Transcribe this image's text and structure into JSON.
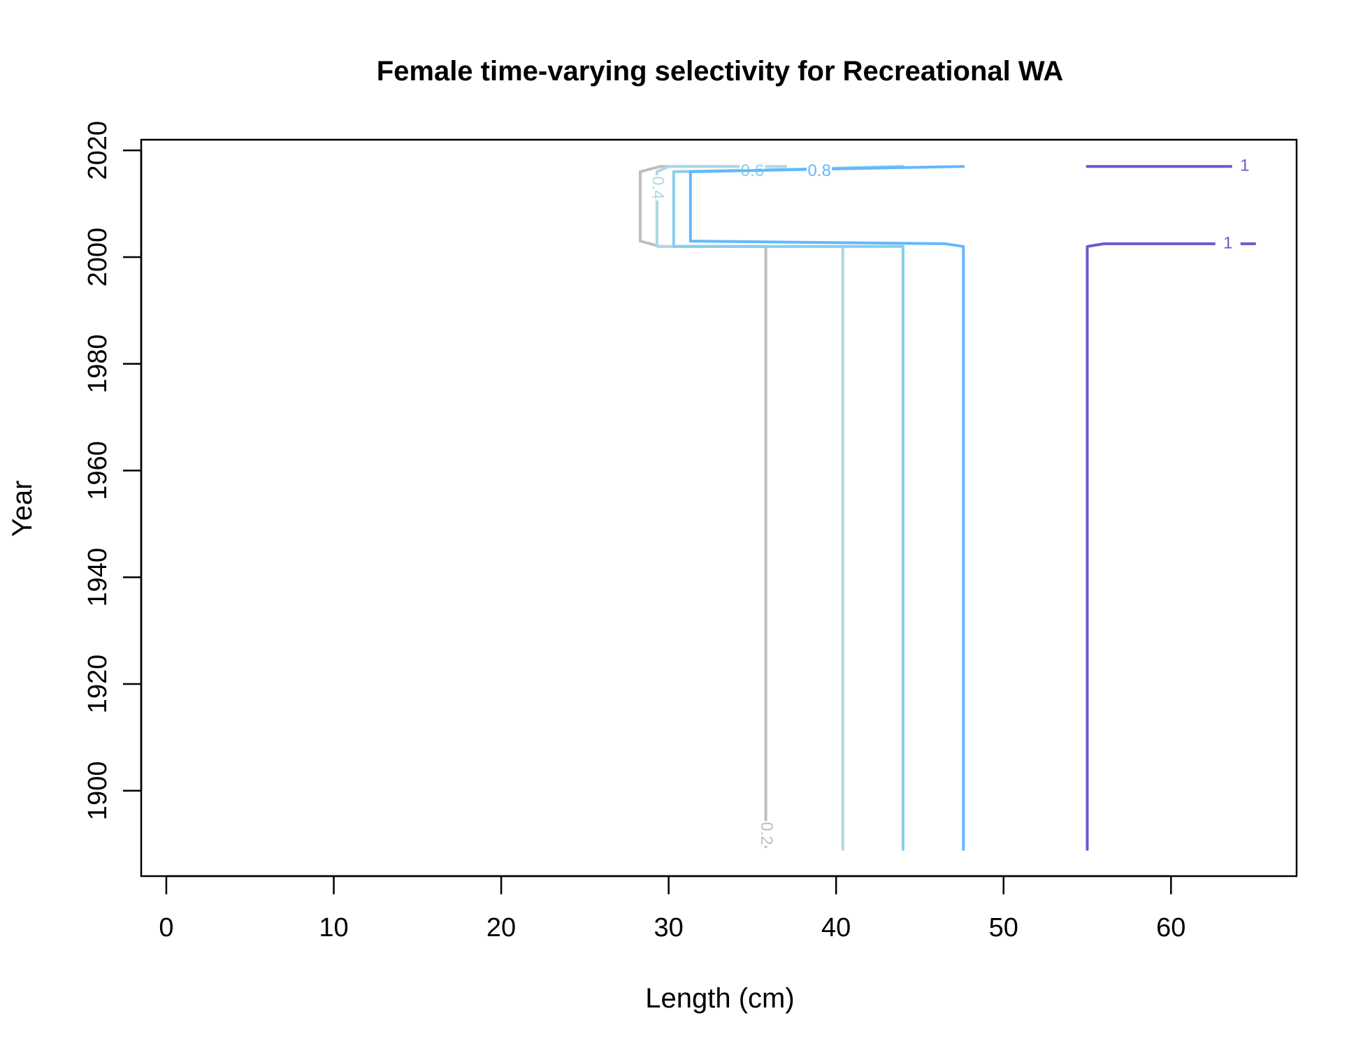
{
  "chart_data": {
    "type": "contour",
    "title": "Female time-varying selectivity for Recreational WA",
    "xlabel": "Length (cm)",
    "ylabel": "Year",
    "xlim": [
      -1.5,
      67.5
    ],
    "ylim": [
      1884,
      2022
    ],
    "xticks": [
      "0",
      "10",
      "20",
      "30",
      "40",
      "50",
      "60"
    ],
    "yticks": [
      "1900",
      "1920",
      "1940",
      "1960",
      "1980",
      "2000",
      "2020"
    ],
    "grid": false,
    "legend": "none",
    "levels": [
      {
        "level": "0.2",
        "color": "#bebebe",
        "points": [
          [
            35.8,
            1889.5
          ],
          [
            35.8,
            2002
          ],
          [
            29.5,
            2002
          ],
          [
            28.3,
            2003
          ],
          [
            28.3,
            2016
          ],
          [
            29.5,
            2017
          ],
          [
            35.0,
            2017
          ]
        ],
        "label": {
          "text": "0.2",
          "x": 35.8,
          "y": 1892,
          "rotate": 90
        }
      },
      {
        "level": "0.4",
        "color": "#add8e6",
        "points": [
          [
            40.4,
            1889
          ],
          [
            40.4,
            2002
          ],
          [
            29.3,
            2002
          ],
          [
            29.3,
            2016
          ],
          [
            30.0,
            2017
          ],
          [
            37.0,
            2017
          ]
        ],
        "label": {
          "text": "0.4",
          "x": 29.3,
          "y": 2013,
          "rotate": 90
        }
      },
      {
        "level": "0.6",
        "color": "#87ceeb",
        "points": [
          [
            44.0,
            1889
          ],
          [
            44.0,
            2002
          ],
          [
            30.3,
            2002
          ],
          [
            30.3,
            2016
          ],
          [
            38.0,
            2016.5
          ],
          [
            44.0,
            2017
          ]
        ],
        "label": {
          "text": "0.6",
          "x": 35.0,
          "y": 2016,
          "rotate": 0
        }
      },
      {
        "level": "0.8",
        "color": "#63b8ff",
        "points": [
          [
            47.6,
            1889
          ],
          [
            47.6,
            2002
          ],
          [
            46.5,
            2002.5
          ],
          [
            31.3,
            2003
          ],
          [
            31.3,
            2016
          ],
          [
            47.6,
            2017
          ]
        ],
        "label": {
          "text": "0.8",
          "x": 39.0,
          "y": 2016,
          "rotate": 0
        }
      },
      {
        "level": "1",
        "color": "#6a5acd",
        "points": [
          [
            55.0,
            1889
          ],
          [
            55.0,
            2002
          ],
          [
            56.0,
            2002.5
          ],
          [
            65.0,
            2002.5
          ]
        ],
        "label": {
          "text": "1",
          "x": 63.4,
          "y": 2002.5,
          "rotate": 0
        }
      },
      {
        "level": "1",
        "color": "#6a5acd",
        "points": [
          [
            55.0,
            2017
          ],
          [
            64.0,
            2017
          ]
        ],
        "label": {
          "text": "1",
          "x": 64.4,
          "y": 2017,
          "rotate": 0
        }
      }
    ]
  }
}
